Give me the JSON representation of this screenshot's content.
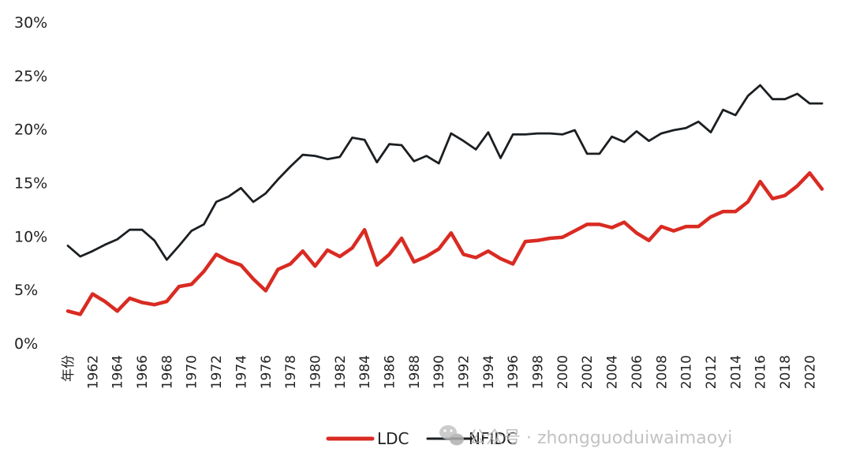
{
  "chart_data": {
    "type": "line",
    "y_ticks": [
      "0%",
      "5%",
      "10%",
      "15%",
      "20%",
      "25%",
      "30%"
    ],
    "ylim": [
      0,
      30
    ],
    "first_x_label": "年份",
    "x_tick_labels": [
      "1962",
      "1964",
      "1966",
      "1968",
      "1970",
      "1972",
      "1974",
      "1976",
      "1978",
      "1980",
      "1982",
      "1984",
      "1986",
      "1988",
      "1990",
      "1992",
      "1994",
      "1996",
      "1998",
      "2000",
      "2002",
      "2004",
      "2006",
      "2008",
      "2010",
      "2012",
      "2014",
      "2016",
      "2018",
      "2020"
    ],
    "x": [
      1960,
      1961,
      1962,
      1963,
      1964,
      1965,
      1966,
      1967,
      1968,
      1969,
      1970,
      1971,
      1972,
      1973,
      1974,
      1975,
      1976,
      1977,
      1978,
      1979,
      1980,
      1981,
      1982,
      1983,
      1984,
      1985,
      1986,
      1987,
      1988,
      1989,
      1990,
      1991,
      1992,
      1993,
      1994,
      1995,
      1996,
      1997,
      1998,
      1999,
      2000,
      2001,
      2002,
      2003,
      2004,
      2005,
      2006,
      2007,
      2008,
      2009,
      2010,
      2011,
      2012,
      2013,
      2014,
      2015,
      2016,
      2017,
      2018,
      2019,
      2020,
      2021
    ],
    "series": [
      {
        "name": "LDC",
        "color": "#d92b22",
        "values": [
          3.0,
          2.7,
          4.6,
          3.9,
          3.0,
          4.2,
          3.8,
          3.6,
          3.9,
          5.3,
          5.5,
          6.7,
          8.3,
          7.7,
          7.3,
          6.0,
          4.9,
          6.9,
          7.4,
          8.6,
          7.2,
          8.7,
          8.1,
          8.9,
          10.6,
          7.3,
          8.3,
          9.8,
          7.6,
          8.1,
          8.8,
          10.3,
          8.3,
          8.0,
          8.6,
          7.9,
          7.4,
          9.5,
          9.6,
          9.8,
          9.9,
          10.5,
          11.1,
          11.1,
          10.8,
          11.3,
          10.3,
          9.6,
          10.9,
          10.5,
          10.9,
          10.9,
          11.8,
          12.3,
          12.3,
          13.2,
          15.1,
          13.5,
          13.8,
          14.7,
          15.9,
          14.4
        ]
      },
      {
        "name": "NFIDC",
        "color": "#1b1f22",
        "values": [
          9.1,
          8.1,
          8.6,
          9.2,
          9.7,
          10.6,
          10.6,
          9.6,
          7.8,
          9.1,
          10.5,
          11.1,
          13.2,
          13.7,
          14.5,
          13.2,
          14.0,
          15.3,
          16.5,
          17.6,
          17.5,
          17.2,
          17.4,
          19.2,
          19.0,
          16.9,
          18.6,
          18.5,
          17.0,
          17.5,
          16.8,
          19.6,
          18.9,
          18.1,
          19.7,
          17.3,
          19.5,
          19.5,
          19.6,
          19.6,
          19.5,
          19.9,
          17.7,
          17.7,
          19.3,
          18.8,
          19.8,
          18.9,
          19.6,
          19.9,
          20.1,
          20.7,
          19.7,
          21.8,
          21.3,
          23.1,
          24.1,
          22.8,
          22.8,
          23.3,
          22.4,
          22.4
        ]
      }
    ]
  },
  "legend": [
    {
      "label": "LDC",
      "color": "#d92b22"
    },
    {
      "label": "NFIDC",
      "color": "#1b1f22"
    }
  ],
  "watermark": {
    "text": "公众号 · zhongguoduiwaimaoyi",
    "icon": "wechat-icon"
  }
}
